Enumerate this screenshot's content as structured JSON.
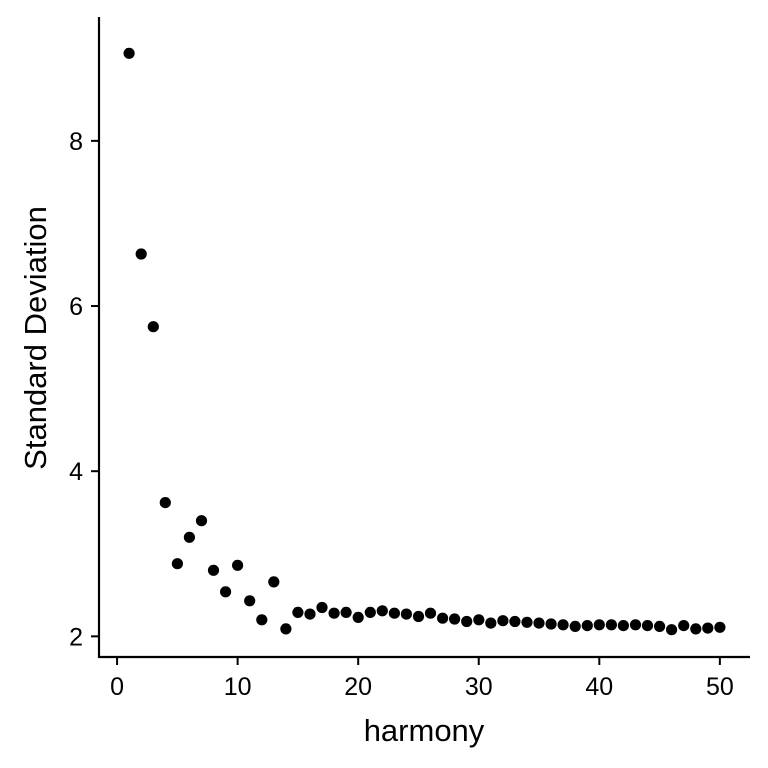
{
  "chart_data": {
    "type": "scatter",
    "xlabel": "harmony",
    "ylabel": "Standard Deviation",
    "xlim": [
      -1.5,
      52.5
    ],
    "ylim": [
      1.75,
      9.5
    ],
    "xticks": [
      0,
      10,
      20,
      30,
      40,
      50
    ],
    "yticks": [
      2,
      4,
      6,
      8
    ],
    "xtick_labels": [
      "0",
      "10",
      "20",
      "30",
      "40",
      "50"
    ],
    "ytick_labels": [
      "2",
      "4",
      "6",
      "8"
    ],
    "grid": false,
    "legend": "none",
    "point_color": "#000000",
    "series": [
      {
        "x": [
          1,
          2,
          3,
          4,
          5,
          6,
          7,
          8,
          9,
          10,
          11,
          12,
          13,
          14,
          15,
          16,
          17,
          18,
          19,
          20,
          21,
          22,
          23,
          24,
          25,
          26,
          27,
          28,
          29,
          30,
          31,
          32,
          33,
          34,
          35,
          36,
          37,
          38,
          39,
          40,
          41,
          42,
          43,
          44,
          45,
          46,
          47,
          48,
          49,
          50
        ],
        "values": [
          9.06,
          6.63,
          5.75,
          3.62,
          2.88,
          3.2,
          3.4,
          2.8,
          2.54,
          2.86,
          2.43,
          2.2,
          2.66,
          2.09,
          2.29,
          2.27,
          2.35,
          2.28,
          2.29,
          2.23,
          2.29,
          2.31,
          2.28,
          2.27,
          2.24,
          2.28,
          2.22,
          2.21,
          2.18,
          2.2,
          2.16,
          2.19,
          2.18,
          2.17,
          2.16,
          2.15,
          2.14,
          2.12,
          2.13,
          2.14,
          2.14,
          2.13,
          2.14,
          2.13,
          2.12,
          2.08,
          2.13,
          2.09,
          2.1,
          2.11
        ]
      }
    ]
  }
}
